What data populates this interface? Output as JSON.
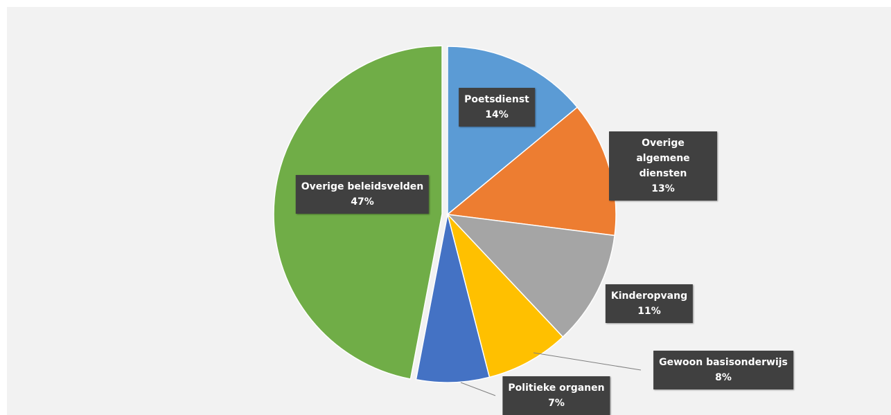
{
  "chart_data": {
    "type": "pie",
    "categories": [
      "Poetsdienst",
      "Overige algemene diensten",
      "Kinderopvang",
      "Gewoon basisonderwijs",
      "Politieke organen",
      "Overige beleidsvelden"
    ],
    "values": [
      14,
      13,
      11,
      8,
      7,
      47
    ],
    "value_labels": [
      "14%",
      "13%",
      "11%",
      "8%",
      "7%",
      "47%"
    ],
    "colors": [
      "#5b9bd5",
      "#ed7d31",
      "#a5a5a5",
      "#ffc000",
      "#4472c4",
      "#70ad47"
    ]
  }
}
